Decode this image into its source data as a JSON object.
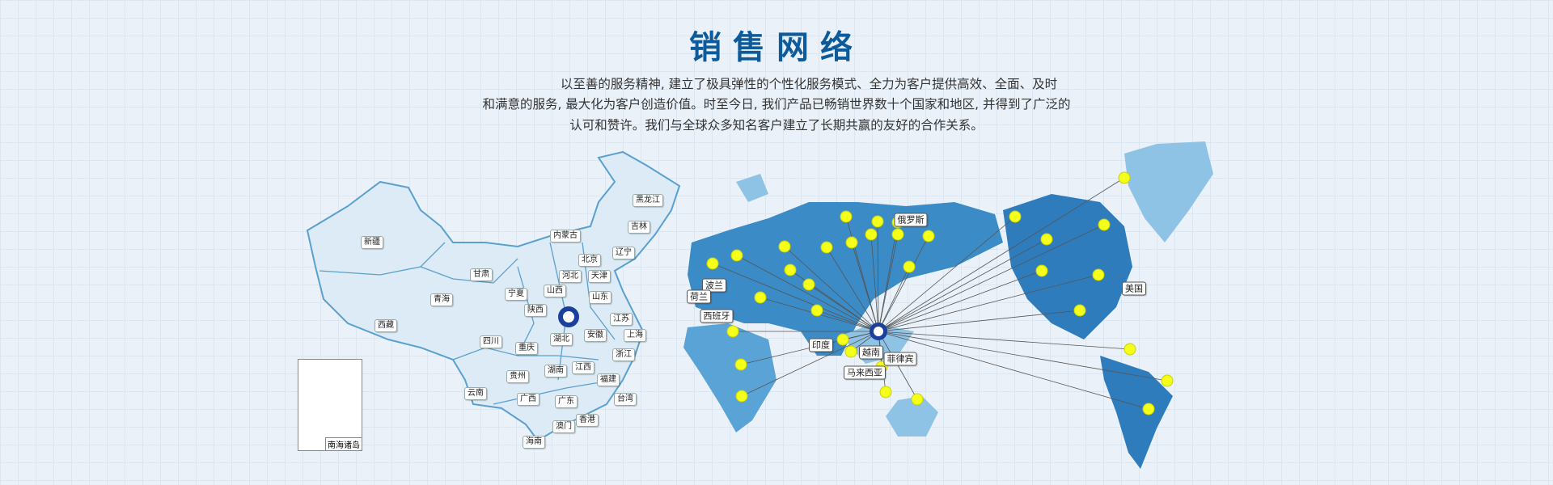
{
  "title": "销售网络",
  "intro": [
    "以至善的服务精神, 建立了极具弹性的个性化服务模式、全力为客户提供高效、全面、及时",
    "和满意的服务, 最大化为客户创造价值。时至今日, 我们产品已畅销世界数十个国家和地区, 并得到了广泛的",
    "认可和赞许。我们与全球众多知名客户建立了长期共赢的友好的合作关系。"
  ],
  "china_provinces": [
    "新疆",
    "西藏",
    "青海",
    "甘肃",
    "宁夏",
    "内蒙古",
    "黑龙江",
    "吉林",
    "辽宁",
    "北京",
    "河北",
    "天津",
    "山西",
    "山东",
    "陕西",
    "江苏",
    "上海",
    "安徽",
    "湖北",
    "四川",
    "重庆",
    "浙江",
    "江西",
    "湖南",
    "福建",
    "贵州",
    "云南",
    "广西",
    "广东",
    "台湾",
    "香港",
    "澳门",
    "海南"
  ],
  "inset_label": "南海诸岛",
  "world_countries": [
    "俄罗斯",
    "美国",
    "波兰",
    "荷兰",
    "西班牙",
    "印度",
    "越南",
    "菲律宾",
    "马来西亚"
  ],
  "colors": {
    "title": "#0d5b9a",
    "point": "#f4ff1a",
    "land_dark": "#1f6fad",
    "land_light": "#8fc3e6",
    "china": "#dcebf5"
  }
}
